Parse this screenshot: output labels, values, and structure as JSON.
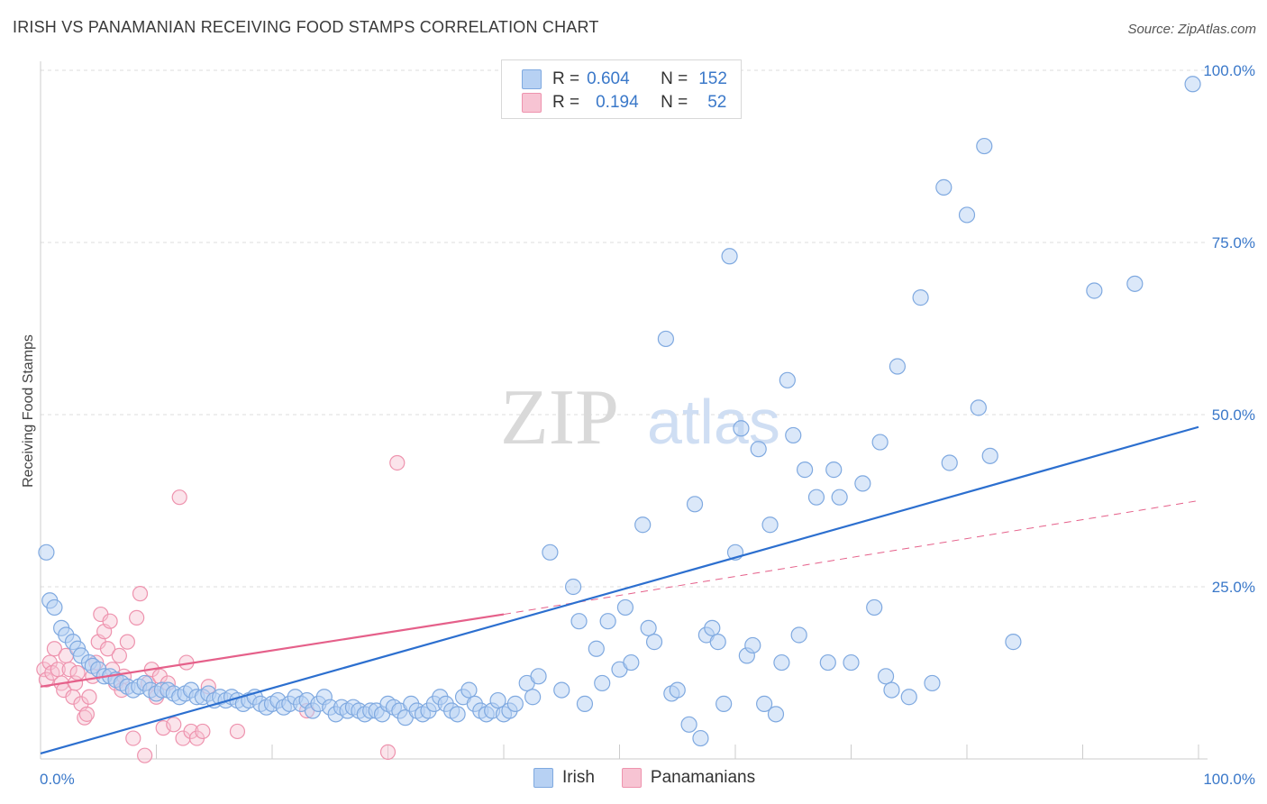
{
  "title": "IRISH VS PANAMANIAN RECEIVING FOOD STAMPS CORRELATION CHART",
  "source": "Source: ZipAtlas.com",
  "watermark": {
    "zip": "ZIP",
    "atlas": "atlas"
  },
  "legend": {
    "r_label": "R =",
    "n_label": "N =",
    "irish": {
      "r": "0.604",
      "n": "152"
    },
    "panamanian": {
      "r": "0.194",
      "n": "52"
    }
  },
  "bottom_legend": {
    "irish": "Irish",
    "panamanians": "Panamanians"
  },
  "colors": {
    "irish_fill": "#b7d1f3",
    "irish_stroke": "#7fa9e0",
    "irish_line": "#2c6fcf",
    "pan_fill": "#f7c4d3",
    "pan_stroke": "#ee93ae",
    "pan_line": "#e5608a",
    "tick": "#3a78c9",
    "grid": "#dcdcdc"
  },
  "chart_data": {
    "type": "scatter",
    "title": "IRISH VS PANAMANIAN RECEIVING FOOD STAMPS CORRELATION CHART",
    "ylabel": "Receiving Food Stamps",
    "xlabel": "",
    "xlim": [
      0,
      100
    ],
    "ylim": [
      0,
      100
    ],
    "x_tick_labels": [
      "0.0%",
      "100.0%"
    ],
    "y_ticks": [
      25,
      50,
      75,
      100
    ],
    "y_tick_labels": [
      "25.0%",
      "50.0%",
      "75.0%",
      "100.0%"
    ],
    "grid": true,
    "legend_position": "top-center",
    "series": [
      {
        "name": "Irish",
        "r": 0.604,
        "n": 152,
        "trend": {
          "x": [
            0,
            100
          ],
          "y": [
            0.8,
            48.2
          ],
          "style": "solid"
        },
        "points": [
          [
            0.5,
            30
          ],
          [
            0.8,
            23
          ],
          [
            1.2,
            22
          ],
          [
            1.8,
            19
          ],
          [
            2.2,
            18
          ],
          [
            2.8,
            17
          ],
          [
            3.2,
            16
          ],
          [
            3.5,
            15
          ],
          [
            4.2,
            14
          ],
          [
            4.5,
            13.5
          ],
          [
            5,
            13
          ],
          [
            5.5,
            12
          ],
          [
            6,
            12
          ],
          [
            6.5,
            11.5
          ],
          [
            7,
            11
          ],
          [
            7.5,
            10.5
          ],
          [
            8,
            10
          ],
          [
            8.5,
            10.5
          ],
          [
            9,
            11
          ],
          [
            9.5,
            10
          ],
          [
            10,
            9.5
          ],
          [
            10.5,
            10
          ],
          [
            11,
            10
          ],
          [
            11.5,
            9.5
          ],
          [
            12,
            9
          ],
          [
            12.5,
            9.5
          ],
          [
            13,
            10
          ],
          [
            13.5,
            9
          ],
          [
            14,
            9
          ],
          [
            14.5,
            9.5
          ],
          [
            15,
            8.5
          ],
          [
            15.5,
            9
          ],
          [
            16,
            8.5
          ],
          [
            16.5,
            9
          ],
          [
            17,
            8.5
          ],
          [
            17.5,
            8
          ],
          [
            18,
            8.5
          ],
          [
            18.5,
            9
          ],
          [
            19,
            8
          ],
          [
            19.5,
            7.5
          ],
          [
            20,
            8
          ],
          [
            20.5,
            8.5
          ],
          [
            21,
            7.5
          ],
          [
            21.5,
            8
          ],
          [
            22,
            9
          ],
          [
            22.5,
            8
          ],
          [
            23,
            8.5
          ],
          [
            23.5,
            7
          ],
          [
            24,
            8
          ],
          [
            24.5,
            9
          ],
          [
            25,
            7.5
          ],
          [
            25.5,
            6.5
          ],
          [
            26,
            7.5
          ],
          [
            26.5,
            7
          ],
          [
            27,
            7.5
          ],
          [
            27.5,
            7
          ],
          [
            28,
            6.5
          ],
          [
            28.5,
            7
          ],
          [
            29,
            7
          ],
          [
            29.5,
            6.5
          ],
          [
            30,
            8
          ],
          [
            30.5,
            7.5
          ],
          [
            31,
            7
          ],
          [
            31.5,
            6
          ],
          [
            32,
            8
          ],
          [
            32.5,
            7
          ],
          [
            33,
            6.5
          ],
          [
            33.5,
            7
          ],
          [
            34,
            8
          ],
          [
            34.5,
            9
          ],
          [
            35,
            8
          ],
          [
            35.5,
            7
          ],
          [
            36,
            6.5
          ],
          [
            36.5,
            9
          ],
          [
            37,
            10
          ],
          [
            37.5,
            8
          ],
          [
            38,
            7
          ],
          [
            38.5,
            6.5
          ],
          [
            39,
            7
          ],
          [
            39.5,
            8.5
          ],
          [
            40,
            6.5
          ],
          [
            40.5,
            7
          ],
          [
            41,
            8
          ],
          [
            42,
            11
          ],
          [
            42.5,
            9
          ],
          [
            43,
            12
          ],
          [
            44,
            30
          ],
          [
            45,
            10
          ],
          [
            46,
            25
          ],
          [
            46.5,
            20
          ],
          [
            47,
            8
          ],
          [
            48,
            16
          ],
          [
            48.5,
            11
          ],
          [
            49,
            20
          ],
          [
            50,
            13
          ],
          [
            50.5,
            22
          ],
          [
            51,
            14
          ],
          [
            52,
            34
          ],
          [
            52.5,
            19
          ],
          [
            53,
            17
          ],
          [
            54,
            61
          ],
          [
            54.5,
            9.5
          ],
          [
            55,
            10
          ],
          [
            56,
            5
          ],
          [
            56.5,
            37
          ],
          [
            57,
            3
          ],
          [
            57.5,
            18
          ],
          [
            58,
            19
          ],
          [
            58.5,
            17
          ],
          [
            59,
            8
          ],
          [
            59.5,
            73
          ],
          [
            60,
            30
          ],
          [
            60.5,
            48
          ],
          [
            61,
            15
          ],
          [
            61.5,
            16.5
          ],
          [
            62,
            45
          ],
          [
            62.5,
            8
          ],
          [
            63,
            34
          ],
          [
            63.5,
            6.5
          ],
          [
            64,
            14
          ],
          [
            64.5,
            55
          ],
          [
            65,
            47
          ],
          [
            65.5,
            18
          ],
          [
            66,
            42
          ],
          [
            67,
            38
          ],
          [
            68,
            14
          ],
          [
            68.5,
            42
          ],
          [
            69,
            38
          ],
          [
            70,
            14
          ],
          [
            71,
            40
          ],
          [
            72,
            22
          ],
          [
            72.5,
            46
          ],
          [
            73,
            12
          ],
          [
            73.5,
            10
          ],
          [
            74,
            57
          ],
          [
            75,
            9
          ],
          [
            76,
            67
          ],
          [
            77,
            11
          ],
          [
            78,
            83
          ],
          [
            78.5,
            43
          ],
          [
            80,
            79
          ],
          [
            81,
            51
          ],
          [
            81.5,
            89
          ],
          [
            82,
            44
          ],
          [
            84,
            17
          ],
          [
            91,
            68
          ],
          [
            94.5,
            69
          ],
          [
            99.5,
            98
          ]
        ]
      },
      {
        "name": "Panamanians",
        "r": 0.194,
        "n": 52,
        "trend": {
          "x": [
            0,
            40
          ],
          "y": [
            10.5,
            21
          ],
          "dash_to": {
            "x": 100,
            "y": 37.5
          },
          "style": "solid+dashed"
        },
        "points": [
          [
            0.3,
            13
          ],
          [
            0.5,
            11.5
          ],
          [
            0.8,
            14
          ],
          [
            1,
            12.5
          ],
          [
            1.2,
            16
          ],
          [
            1.5,
            13
          ],
          [
            1.8,
            11
          ],
          [
            2,
            10
          ],
          [
            2.2,
            15
          ],
          [
            2.5,
            13
          ],
          [
            2.8,
            9
          ],
          [
            3,
            11
          ],
          [
            3.2,
            12.5
          ],
          [
            3.5,
            8
          ],
          [
            3.8,
            6
          ],
          [
            4,
            6.5
          ],
          [
            4.2,
            9
          ],
          [
            4.5,
            12
          ],
          [
            4.8,
            14
          ],
          [
            5,
            17
          ],
          [
            5.2,
            21
          ],
          [
            5.5,
            18.5
          ],
          [
            5.8,
            16
          ],
          [
            6,
            20
          ],
          [
            6.2,
            13
          ],
          [
            6.5,
            11
          ],
          [
            6.8,
            15
          ],
          [
            7,
            10
          ],
          [
            7.2,
            12
          ],
          [
            7.5,
            17
          ],
          [
            8,
            3
          ],
          [
            8.3,
            20.5
          ],
          [
            8.6,
            24
          ],
          [
            9,
            0.5
          ],
          [
            9.3,
            11
          ],
          [
            9.6,
            13
          ],
          [
            10,
            9
          ],
          [
            10.3,
            12
          ],
          [
            10.6,
            4.5
          ],
          [
            11,
            11
          ],
          [
            11.5,
            5
          ],
          [
            12,
            38
          ],
          [
            12.3,
            3
          ],
          [
            12.6,
            14
          ],
          [
            13,
            4
          ],
          [
            13.5,
            3
          ],
          [
            14,
            4
          ],
          [
            14.5,
            10.5
          ],
          [
            17,
            4
          ],
          [
            23,
            7
          ],
          [
            30,
            1
          ],
          [
            30.8,
            43
          ]
        ]
      }
    ]
  }
}
